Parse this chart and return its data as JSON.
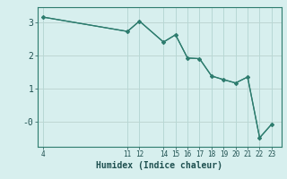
{
  "x": [
    4,
    11,
    12,
    14,
    15,
    16,
    17,
    18,
    19,
    20,
    21,
    22,
    23
  ],
  "y": [
    3.15,
    2.72,
    3.03,
    2.4,
    2.62,
    1.92,
    1.9,
    1.38,
    1.27,
    1.17,
    1.35,
    -0.48,
    -0.07
  ],
  "line_color": "#2d7c6e",
  "marker_color": "#2d7c6e",
  "bg_color": "#d7efee",
  "grid_color": "#b8d8d5",
  "grid_color_red": "#e8c0c0",
  "xlabel": "Humidex (Indice chaleur)",
  "xlim": [
    3.5,
    23.8
  ],
  "ylim": [
    -0.75,
    3.45
  ],
  "yticks": [
    3,
    2,
    1,
    0
  ],
  "ytick_labels": [
    "3",
    "2",
    "1",
    "-0"
  ],
  "xtick_positions": [
    4,
    11,
    12,
    14,
    15,
    16,
    17,
    18,
    19,
    20,
    21,
    22,
    23
  ],
  "xtick_labels": [
    "4",
    "11",
    "12",
    "14",
    "15",
    "16",
    "17",
    "18",
    "19",
    "20",
    "21",
    "22",
    "23"
  ],
  "font_color": "#1e5050",
  "spine_color": "#2d7c6e"
}
